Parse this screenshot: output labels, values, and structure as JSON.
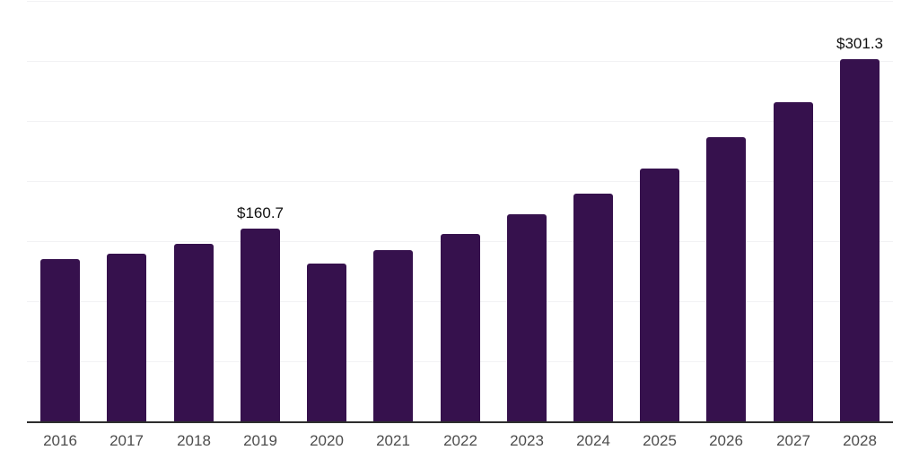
{
  "chart_data": {
    "type": "bar",
    "title": "",
    "xlabel": "",
    "ylabel": "",
    "categories": [
      "2016",
      "2017",
      "2018",
      "2019",
      "2020",
      "2021",
      "2022",
      "2023",
      "2024",
      "2025",
      "2026",
      "2027",
      "2028"
    ],
    "values": [
      135.3,
      139.8,
      148.0,
      160.7,
      131.6,
      142.8,
      156.2,
      172.7,
      189.9,
      210.8,
      236.2,
      265.4,
      301.3
    ],
    "labeled_points": [
      {
        "category": "2019",
        "label": "$160.7"
      },
      {
        "category": "2028",
        "label": "$301.3"
      }
    ],
    "ylim": [
      0,
      350
    ],
    "gridline_step": 50,
    "grid": true,
    "legend": false,
    "colors": {
      "bar": "#36114d",
      "gridline": "#f2f2f4",
      "axis_line": "#2e2e2e",
      "tick_label": "#4d4d4d",
      "value_label": "#111111",
      "background": "#ffffff"
    }
  }
}
